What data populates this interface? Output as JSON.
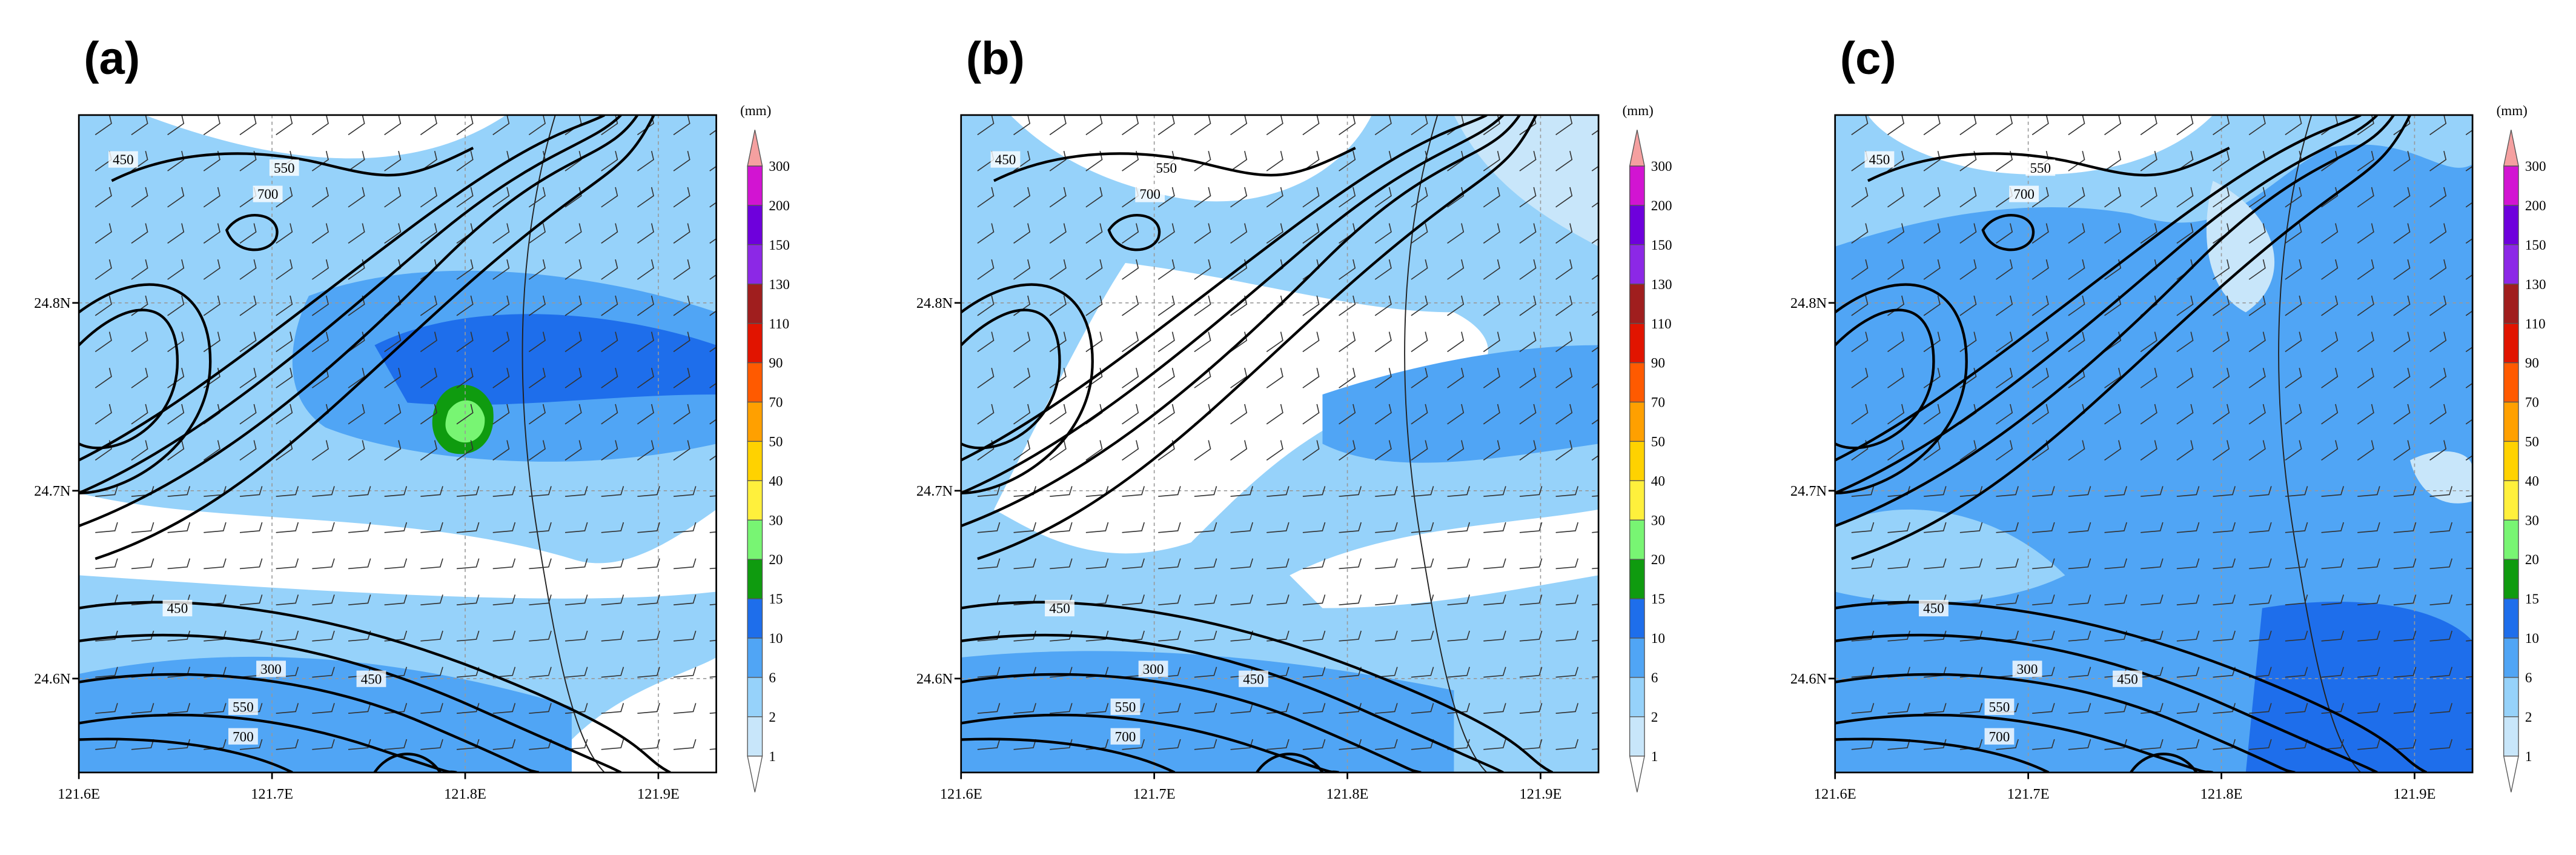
{
  "figure": {
    "panels": [
      {
        "label": "(a)"
      },
      {
        "label": "(b)"
      },
      {
        "label": "(c)"
      }
    ],
    "xticks": [
      {
        "value": 121.6,
        "label": "121.6E"
      },
      {
        "value": 121.7,
        "label": "121.7E"
      },
      {
        "value": 121.8,
        "label": "121.8E"
      },
      {
        "value": 121.9,
        "label": "121.9E"
      }
    ],
    "yticks": [
      {
        "value": 24.6,
        "label": "24.6N"
      },
      {
        "value": 24.7,
        "label": "24.7N"
      },
      {
        "value": 24.8,
        "label": "24.8N"
      }
    ],
    "xlim": [
      121.6,
      121.93
    ],
    "ylim": [
      24.55,
      24.9
    ],
    "colorbar": {
      "unit": "(mm)",
      "levels": [
        1,
        2,
        6,
        10,
        15,
        20,
        30,
        40,
        50,
        70,
        90,
        110,
        130,
        150,
        200,
        300
      ],
      "colors": [
        "#ffffff",
        "#c8e6fa",
        "#96d2fa",
        "#50a5f5",
        "#1e6eeb",
        "#0f9b0f",
        "#78f573",
        "#fff03c",
        "#ffd200",
        "#ffa000",
        "#ff5a00",
        "#e11400",
        "#a01e1e",
        "#8c28e6",
        "#6e00dc",
        "#d214d2",
        "#f5a0a0"
      ]
    },
    "contour_labels": [
      450,
      550,
      700,
      450,
      300,
      450,
      550,
      700
    ]
  }
}
